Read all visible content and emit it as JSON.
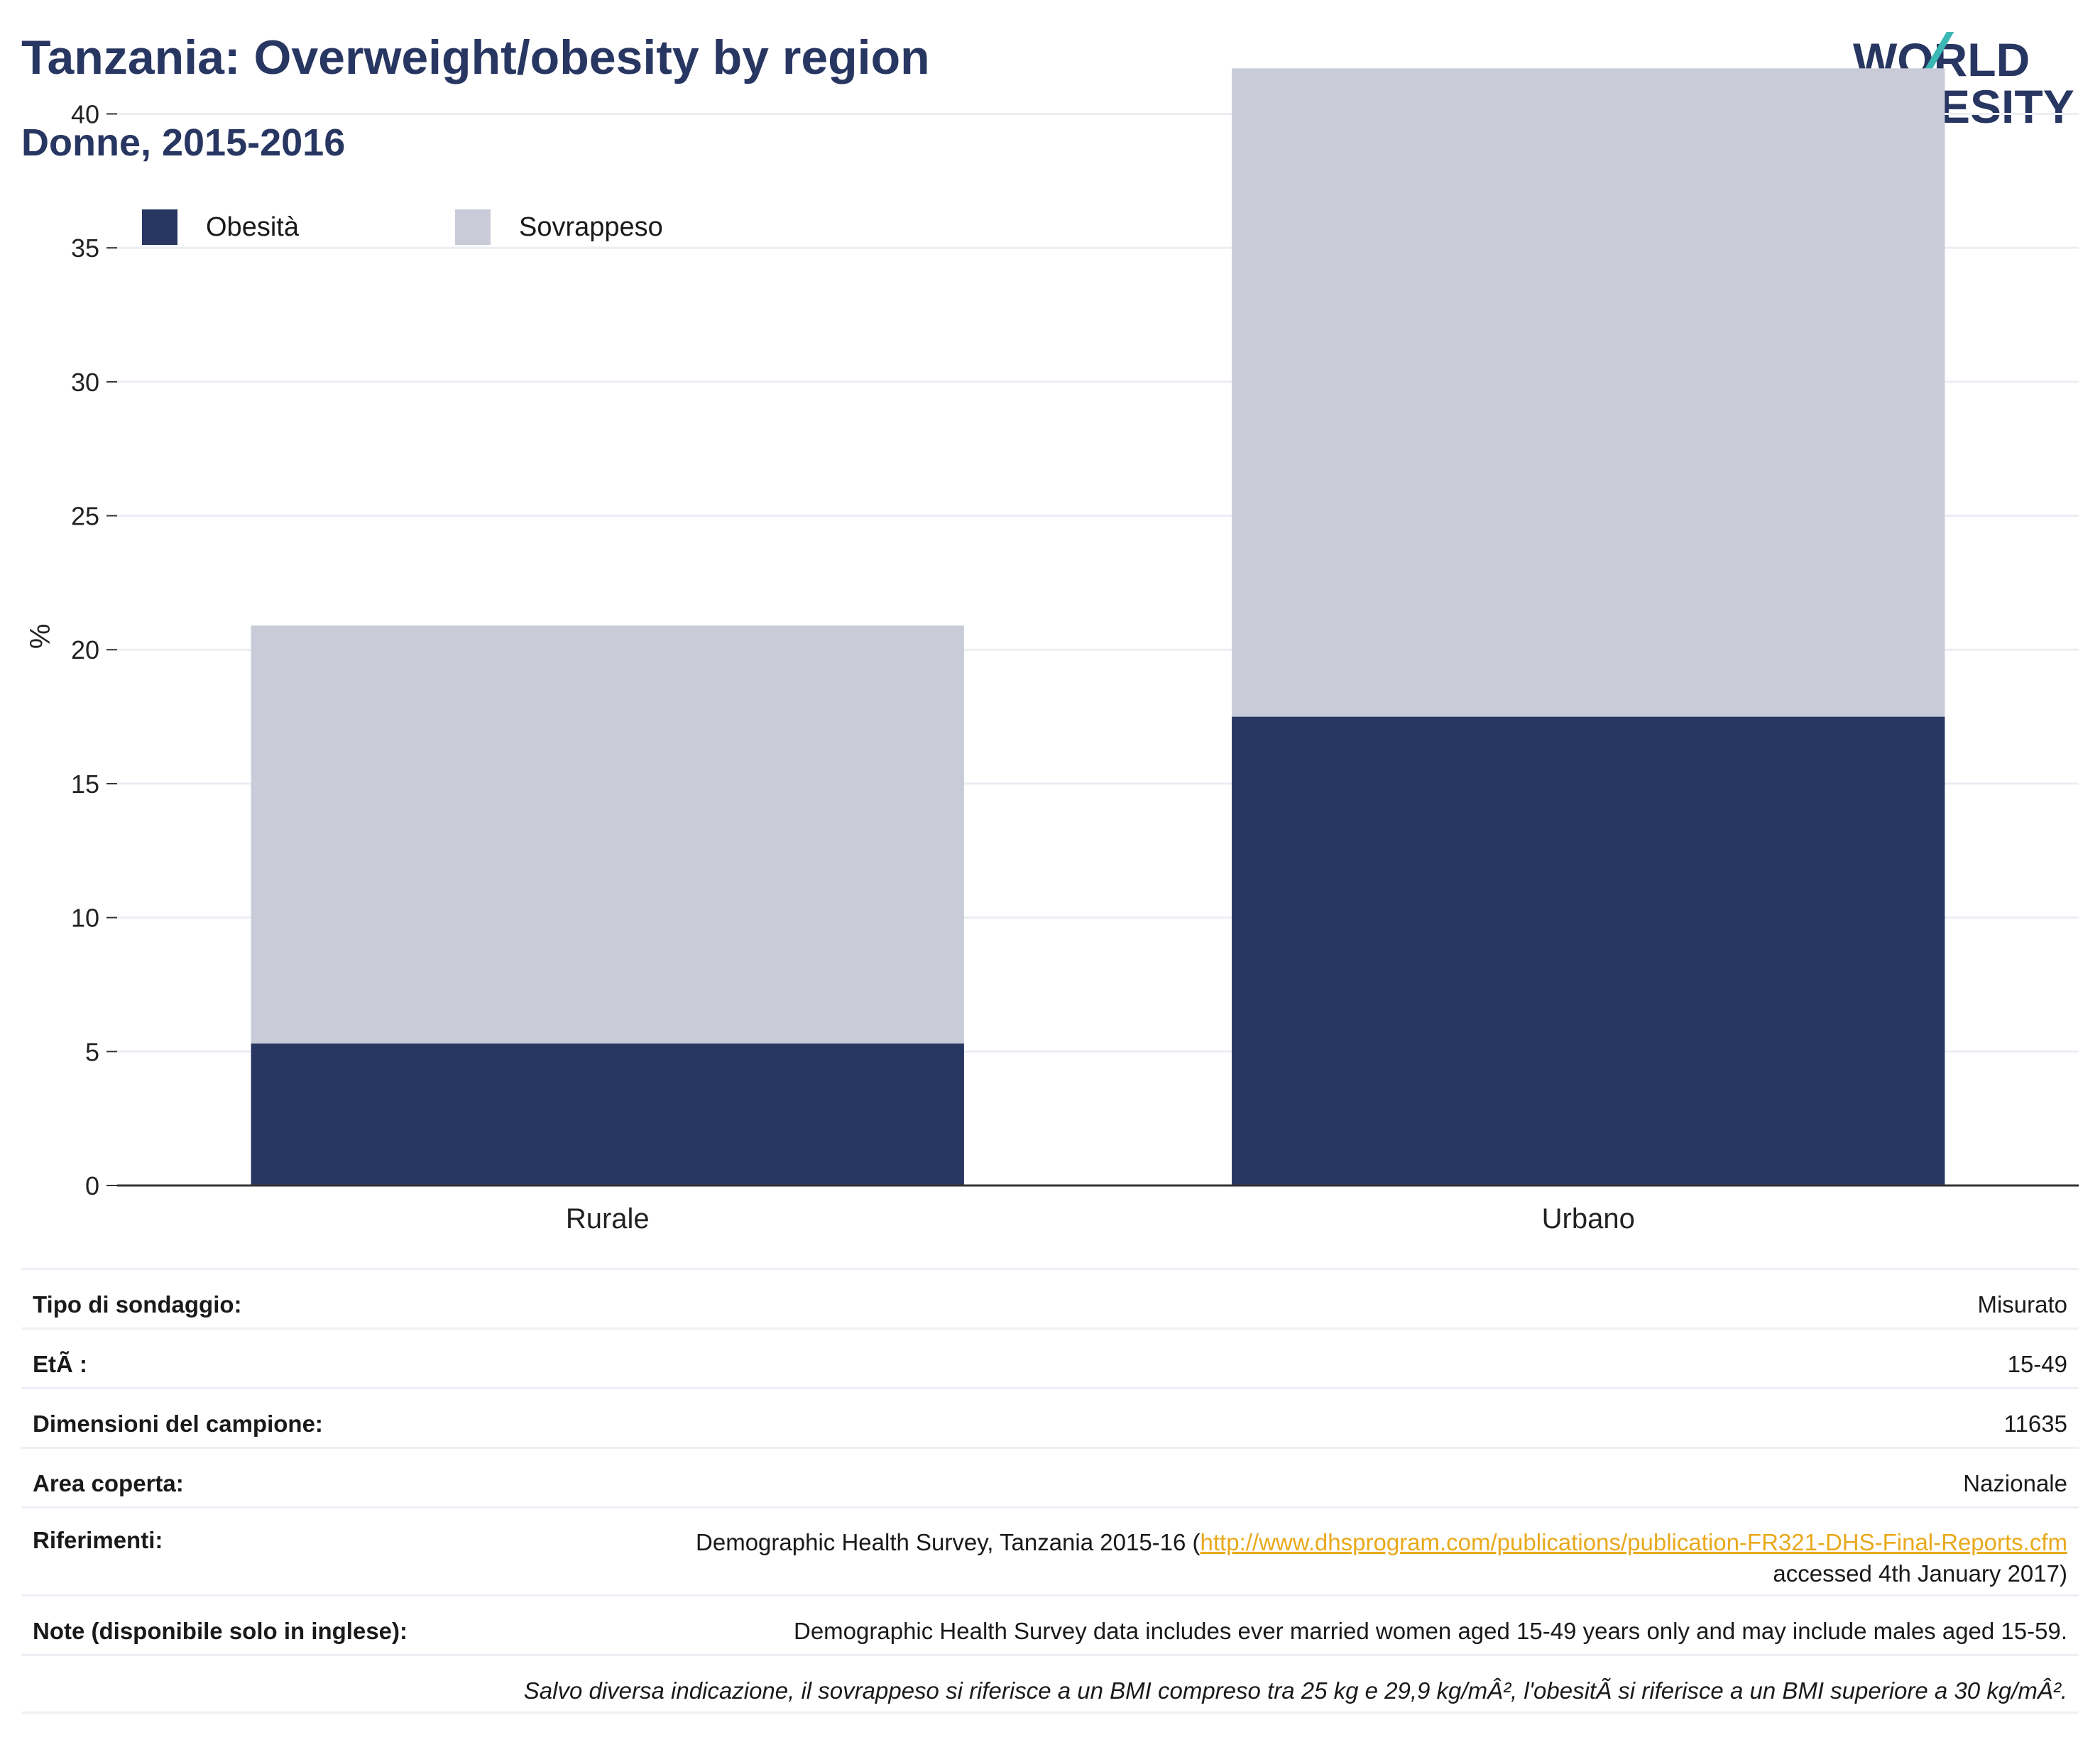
{
  "header": {
    "title": "Tanzania: Overweight/obesity by region",
    "subtitle": "Donne, 2015-2016",
    "logo_line1": "WORLD",
    "logo_line2": "OBESITY"
  },
  "colors": {
    "title": "#283662",
    "obesity": "#283662",
    "overweight": "#c9ccd8",
    "logo_teal": "#3cb8b4",
    "logo_coral": "#e8705c",
    "link": "#e8a91b",
    "grid": "#eceef4"
  },
  "chart_data": {
    "type": "bar",
    "stacked": true,
    "categories": [
      "Rurale",
      "Urbano"
    ],
    "series": [
      {
        "name": "Obesità",
        "values": [
          5.3,
          17.5
        ]
      },
      {
        "name": "Sovrappeso",
        "values": [
          15.6,
          24.2
        ]
      }
    ],
    "ylabel": "%",
    "ylim": [
      0,
      42
    ],
    "yticks": [
      0,
      5,
      10,
      15,
      20,
      25,
      30,
      35,
      40
    ],
    "grid": true,
    "legend": "top-left"
  },
  "info": {
    "rows": [
      {
        "label": "Tipo di sondaggio:",
        "value": "Misurato"
      },
      {
        "label": "EtÃ :",
        "value": "15-49"
      },
      {
        "label": "Dimensioni del campione:",
        "value": "11635"
      },
      {
        "label": "Area coperta:",
        "value": "Nazionale"
      }
    ],
    "references": {
      "label": "Riferimenti:",
      "text_before": "Demographic Health Survey, Tanzania 2015-16 (",
      "link": "http://www.dhsprogram.com/publications/publication-FR321-DHS-Final-Reports.cfm",
      "text_after": "accessed 4th January 2017)"
    },
    "notes": {
      "label": "Note (disponibile solo in inglese):",
      "value": "Demographic Health Survey data includes ever married women aged 15-49 years only and may include males aged 15-59."
    },
    "footnote": "Salvo diversa indicazione, il sovrappeso si riferisce a un BMI compreso tra 25 kg e 29,9 kg/mÂ², l'obesitÃ  si riferisce a un BMI superiore a 30 kg/mÂ²."
  }
}
